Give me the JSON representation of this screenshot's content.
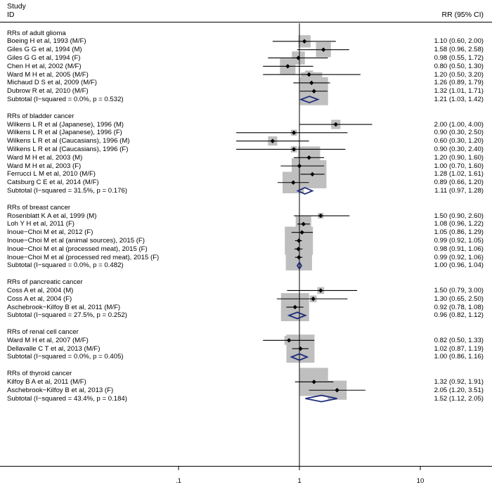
{
  "header": {
    "study": "Study",
    "id": "ID",
    "effect": "RR (95% CI)"
  },
  "chart_data": {
    "type": "forest",
    "x_scale": "log",
    "x_ticks": [
      0.1,
      1,
      10
    ],
    "x_tick_labels": [
      ".1",
      "1",
      "10"
    ],
    "reference_line": 1,
    "groups": [
      {
        "title": "RRs of adult glioma",
        "studies": [
          {
            "label": "Boeing H et al, 1993 (M/F)",
            "rr": 1.1,
            "lo": 0.6,
            "hi": 2.0,
            "text": "1.10 (0.60, 2.00)"
          },
          {
            "label": "Giles G G et al, 1994 (M)",
            "rr": 1.58,
            "lo": 0.96,
            "hi": 2.58,
            "text": "1.58 (0.96, 2.58)"
          },
          {
            "label": "Giles G G et al, 1994 (F)",
            "rr": 0.98,
            "lo": 0.55,
            "hi": 1.72,
            "text": "0.98 (0.55, 1.72)"
          },
          {
            "label": "Chen H et al, 2002 (M/F)",
            "rr": 0.8,
            "lo": 0.5,
            "hi": 1.3,
            "text": "0.80 (0.50, 1.30)"
          },
          {
            "label": "Ward M H et al, 2005 (M/F)",
            "rr": 1.2,
            "lo": 0.5,
            "hi": 3.2,
            "text": "1.20 (0.50, 3.20)"
          },
          {
            "label": "Michaud D S et al, 2009 (M/F)",
            "rr": 1.26,
            "lo": 0.89,
            "hi": 1.79,
            "text": "1.26 (0.89, 1.79)"
          },
          {
            "label": "Dubrow R et al, 2010 (M/F)",
            "rr": 1.32,
            "lo": 1.01,
            "hi": 1.71,
            "text": "1.32 (1.01, 1.71)"
          }
        ],
        "subtotal": {
          "label": "Subtotal  (I−squared = 0.0%, p = 0.532)",
          "rr": 1.21,
          "lo": 1.03,
          "hi": 1.42,
          "text": "1.21 (1.03, 1.42)"
        }
      },
      {
        "title": "RRs of bladder cancer",
        "studies": [
          {
            "label": "Wilkens L R et al (Japanese), 1996 (M)",
            "rr": 2.0,
            "lo": 1.0,
            "hi": 4.0,
            "text": "2.00 (1.00, 4.00)"
          },
          {
            "label": "Wilkens L R et al (Japanese), 1996 (F)",
            "rr": 0.9,
            "lo": 0.3,
            "hi": 2.5,
            "text": "0.90 (0.30, 2.50)"
          },
          {
            "label": "Wilkens L R et al (Caucasians), 1996 (M)",
            "rr": 0.6,
            "lo": 0.3,
            "hi": 1.2,
            "text": "0.60 (0.30, 1.20)"
          },
          {
            "label": "Wilkens L R et al (Caucasians), 1996 (F)",
            "rr": 0.9,
            "lo": 0.3,
            "hi": 2.4,
            "text": "0.90 (0.30, 2.40)"
          },
          {
            "label": "Ward M H et al, 2003 (M)",
            "rr": 1.2,
            "lo": 0.9,
            "hi": 1.6,
            "text": "1.20 (0.90, 1.60)"
          },
          {
            "label": "Ward M H et al, 2003 (F)",
            "rr": 1.0,
            "lo": 0.7,
            "hi": 1.6,
            "text": "1.00 (0.70, 1.60)"
          },
          {
            "label": "Ferrucci L M et al, 2010 (M/F)",
            "rr": 1.28,
            "lo": 1.02,
            "hi": 1.61,
            "text": "1.28 (1.02, 1.61)"
          },
          {
            "label": "Catsburg C E et al, 2014 (M/F)",
            "rr": 0.89,
            "lo": 0.66,
            "hi": 1.2,
            "text": "0.89 (0.66, 1.20)"
          }
        ],
        "subtotal": {
          "label": "Subtotal  (I−squared = 31.5%, p = 0.176)",
          "rr": 1.11,
          "lo": 0.97,
          "hi": 1.28,
          "text": "1.11 (0.97, 1.28)"
        }
      },
      {
        "title": "RRs of breast cancer",
        "studies": [
          {
            "label": "Rosenblatt K A et al, 1999 (M)",
            "rr": 1.5,
            "lo": 0.9,
            "hi": 2.6,
            "text": "1.50 (0.90, 2.60)"
          },
          {
            "label": "Loh Y H et al, 2011 (F)",
            "rr": 1.08,
            "lo": 0.96,
            "hi": 1.22,
            "text": "1.08 (0.96, 1.22)"
          },
          {
            "label": "Inoue−Choi M et al, 2012 (F)",
            "rr": 1.05,
            "lo": 0.86,
            "hi": 1.29,
            "text": "1.05 (0.86, 1.29)"
          },
          {
            "label": "Inoue−Choi M et al (animal sources), 2015 (F)",
            "rr": 0.99,
            "lo": 0.92,
            "hi": 1.05,
            "text": "0.99 (0.92, 1.05)"
          },
          {
            "label": "Inoue−Choi M et al (processed meat), 2015 (F)",
            "rr": 0.98,
            "lo": 0.91,
            "hi": 1.06,
            "text": "0.98 (0.91, 1.06)"
          },
          {
            "label": "Inoue−Choi M et al (processed red meat), 2015 (F)",
            "rr": 0.99,
            "lo": 0.92,
            "hi": 1.06,
            "text": "0.99 (0.92, 1.06)"
          }
        ],
        "subtotal": {
          "label": "Subtotal  (I−squared = 0.0%, p = 0.482)",
          "rr": 1.0,
          "lo": 0.96,
          "hi": 1.04,
          "text": "1.00 (0.96, 1.04)"
        }
      },
      {
        "title": "RRs of pancreatic cancer",
        "studies": [
          {
            "label": "Coss A et al, 2004 (M)",
            "rr": 1.5,
            "lo": 0.79,
            "hi": 3.0,
            "text": "1.50 (0.79, 3.00)"
          },
          {
            "label": "Coss A et al, 2004 (F)",
            "rr": 1.3,
            "lo": 0.65,
            "hi": 2.5,
            "text": "1.30 (0.65, 2.50)"
          },
          {
            "label": "Aschebrook−Kilfoy B et al, 2011 (M/F)",
            "rr": 0.92,
            "lo": 0.78,
            "hi": 1.08,
            "text": "0.92 (0.78, 1.08)"
          }
        ],
        "subtotal": {
          "label": "Subtotal  (I−squared = 27.5%, p = 0.252)",
          "rr": 0.96,
          "lo": 0.82,
          "hi": 1.12,
          "text": "0.96 (0.82, 1.12)"
        }
      },
      {
        "title": "RRs of renal cell cancer",
        "studies": [
          {
            "label": "Ward M H et al, 2007 (M/F)",
            "rr": 0.82,
            "lo": 0.5,
            "hi": 1.33,
            "text": "0.82 (0.50, 1.33)"
          },
          {
            "label": "Dellavalle C T et al, 2013 (M/F)",
            "rr": 1.02,
            "lo": 0.87,
            "hi": 1.19,
            "text": "1.02 (0.87, 1.19)"
          }
        ],
        "subtotal": {
          "label": "Subtotal  (I−squared = 0.0%, p = 0.405)",
          "rr": 1.0,
          "lo": 0.86,
          "hi": 1.16,
          "text": "1.00 (0.86, 1.16)"
        }
      },
      {
        "title": "RRs of thyroid cancer",
        "studies": [
          {
            "label": "Kilfoy B A et al, 2011 (M/F)",
            "rr": 1.32,
            "lo": 0.92,
            "hi": 1.91,
            "text": "1.32 (0.92, 1.91)"
          },
          {
            "label": "Aschebrook−Kilfoy B et al, 2013 (F)",
            "rr": 2.05,
            "lo": 1.2,
            "hi": 3.51,
            "text": "2.05 (1.20, 3.51)"
          }
        ],
        "subtotal": {
          "label": "Subtotal  (I−squared = 43.4%, p = 0.184)",
          "rr": 1.52,
          "lo": 1.12,
          "hi": 2.05,
          "text": "1.52 (1.12, 2.05)"
        }
      }
    ]
  }
}
